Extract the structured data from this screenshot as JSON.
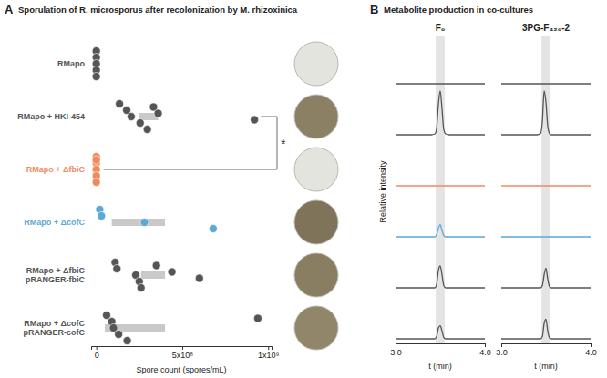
{
  "chart_data": [
    {
      "type": "scatter",
      "panel": "A",
      "orientation": "horizontal",
      "title": "Sporulation of R. microsporus after recolonization by M. rhizoxinica",
      "categories": [
        "RMapo",
        "RMapo + HKI-454",
        "RMapo + ΔfbiC",
        "RMapo + ΔcofC",
        "RMapo + ΔfbiC pRANGER-fbiC",
        "RMapo + ΔcofC pRANGER-cofC"
      ],
      "colors": [
        "#555555",
        "#555555",
        "#f08a5d",
        "#5aa9d6",
        "#555555",
        "#555555"
      ],
      "values": [
        [
          0,
          0,
          0,
          0,
          0
        ],
        [
          135000000,
          177000000,
          203000000,
          255000000,
          297000000,
          333000000,
          360000000,
          920000000
        ],
        [
          0,
          0,
          0,
          0,
          0,
          0
        ],
        [
          20000000,
          30000000,
          280000000,
          680000000
        ],
        [
          110000000,
          120000000,
          230000000,
          250000000,
          260000000,
          350000000,
          440000000,
          600000000
        ],
        [
          60000000,
          90000000,
          100000000,
          130000000,
          180000000,
          940000000
        ]
      ],
      "ranges": [
        [
          0,
          0
        ],
        [
          250000000,
          360000000
        ],
        [
          0,
          0
        ],
        [
          90000000,
          400000000
        ],
        [
          260000000,
          400000000
        ],
        [
          50000000,
          400000000
        ]
      ],
      "xlabel": "Spore count (spores/mL)",
      "xlim": [
        -30000000,
        1020000000
      ],
      "xticks": [
        0,
        {
          "value": 500000000,
          "label": "5x10⁸"
        },
        {
          "value": 1000000000,
          "label": "1x10⁹"
        }
      ],
      "annotation": "*",
      "grid": false
    },
    {
      "type": "line",
      "panel": "B",
      "title": "Metabolite production in co-cultures",
      "subtitle": "F₀",
      "x": [
        3.0,
        3.4,
        3.44,
        3.46,
        3.48,
        3.5,
        3.52,
        3.54,
        3.56,
        3.6,
        4.0
      ],
      "series": [
        {
          "color": "#555555",
          "values": [
            0,
            0,
            0,
            0,
            0,
            0,
            0,
            0,
            0,
            0,
            0
          ]
        },
        {
          "color": "#555555",
          "values": [
            0,
            0,
            0.02,
            0.15,
            0.7,
            1.0,
            0.6,
            0.12,
            0.02,
            0,
            0
          ]
        },
        {
          "color": "#f08a5d",
          "values": [
            0,
            0,
            0,
            0,
            0,
            0,
            0,
            0,
            0,
            0,
            0
          ]
        },
        {
          "color": "#5aa9d6",
          "values": [
            0,
            0,
            0,
            0.05,
            0.2,
            0.28,
            0.15,
            0.03,
            0,
            0,
            0
          ]
        },
        {
          "color": "#555555",
          "values": [
            0,
            0,
            0,
            0.08,
            0.4,
            0.5,
            0.3,
            0.05,
            0,
            0,
            0
          ]
        },
        {
          "color": "#555555",
          "values": [
            0,
            0,
            0,
            0.05,
            0.25,
            0.3,
            0.18,
            0.03,
            0,
            0,
            0
          ]
        }
      ],
      "highlight": [
        3.45,
        3.55
      ],
      "xlabel": "t (min)",
      "ylabel": "Relative intensity",
      "xlim": [
        3.0,
        4.0
      ],
      "xticks": [
        {
          "value": 3.0,
          "label": "3.0"
        },
        {
          "value": 4.0,
          "label": "4.0"
        }
      ],
      "ylim": [
        0,
        1
      ],
      "tick_labels": "x",
      "grid": false
    },
    {
      "type": "line",
      "subtitle": "3PG-F₄₂₀-2",
      "x": [
        3.0,
        3.4,
        3.44,
        3.46,
        3.48,
        3.5,
        3.52,
        3.54,
        3.56,
        3.6,
        4.0
      ],
      "series": [
        {
          "color": "#555555",
          "values": [
            0,
            0,
            0,
            0,
            0,
            0,
            0,
            0,
            0,
            0,
            0
          ]
        },
        {
          "color": "#555555",
          "values": [
            0,
            0,
            0.03,
            0.3,
            1.0,
            0.75,
            0.2,
            0.03,
            0,
            0,
            0
          ]
        },
        {
          "color": "#f08a5d",
          "values": [
            0,
            0,
            0,
            0,
            0,
            0,
            0,
            0,
            0,
            0,
            0
          ]
        },
        {
          "color": "#5aa9d6",
          "values": [
            0,
            0,
            0,
            0,
            0,
            0,
            0,
            0,
            0,
            0,
            0
          ]
        },
        {
          "color": "#555555",
          "values": [
            0,
            0,
            0,
            0.05,
            0.3,
            0.45,
            0.2,
            0.03,
            0,
            0,
            0
          ]
        },
        {
          "color": "#555555",
          "values": [
            0,
            0,
            0,
            0.05,
            0.35,
            0.45,
            0.18,
            0.02,
            0,
            0,
            0
          ]
        }
      ],
      "highlight": [
        3.45,
        3.55
      ],
      "xlabel": "t (min)",
      "xlim": [
        3.0,
        4.0
      ],
      "xticks": [
        {
          "value": 3.0,
          "label": "3.0"
        },
        {
          "value": 4.0,
          "label": "4.0"
        }
      ],
      "ylim": [
        0,
        1
      ],
      "tick_labels": "x",
      "grid": false
    }
  ]
}
